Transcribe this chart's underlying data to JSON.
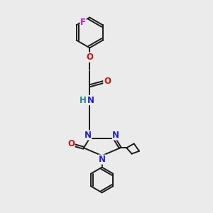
{
  "background_color": "#ebebeb",
  "bond_color": "#1a1a1a",
  "N_color": "#2222cc",
  "O_color": "#cc1111",
  "F_color": "#cc11cc",
  "H_color": "#228888",
  "figsize": [
    3.0,
    3.0
  ],
  "dpi": 100,
  "xlim": [
    0,
    10
  ],
  "ylim": [
    0,
    10
  ]
}
